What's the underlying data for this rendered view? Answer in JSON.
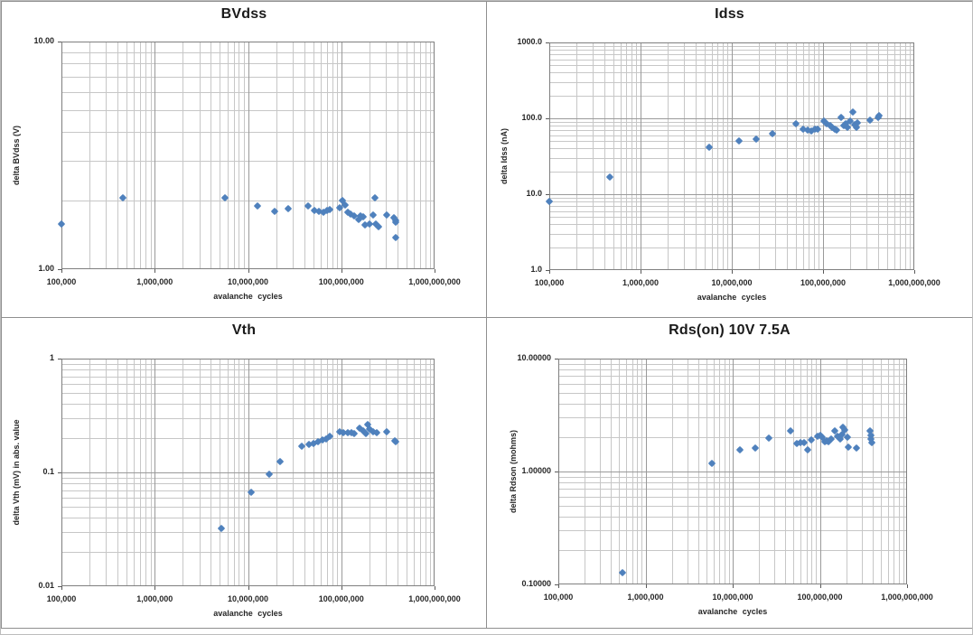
{
  "page": {
    "background": "#ffffff",
    "marker_color": "#4f81bd",
    "gridline_minor_color": "#c7c7c7",
    "gridline_major_color": "#9a9a9a",
    "axis_color": "#595959"
  },
  "chart_data": [
    {
      "id": "bvdss",
      "type": "scatter",
      "title": "BVdss",
      "xlabel": "avalanche cycles",
      "ylabel": "delta BVdss (V)",
      "xscale": "log",
      "yscale": "log",
      "xlim": [
        100000,
        1000000000
      ],
      "ylim": [
        1,
        10
      ],
      "x_tick_labels": [
        "100,000",
        "1,000,000",
        "10,000,000",
        "100,000,000",
        "1,000,000,000"
      ],
      "y_tick_values": [
        10,
        1
      ],
      "y_tick_labels": [
        "10.00",
        "1.00"
      ],
      "grid": true,
      "legend": null,
      "points": [
        [
          100000,
          1.58
        ],
        [
          460000,
          2.05
        ],
        [
          5600000,
          2.05
        ],
        [
          12500000,
          1.9
        ],
        [
          19500000,
          1.8
        ],
        [
          27000000,
          1.85
        ],
        [
          44000000,
          1.9
        ],
        [
          51000000,
          1.81
        ],
        [
          57000000,
          1.8
        ],
        [
          64000000,
          1.78
        ],
        [
          70000000,
          1.81
        ],
        [
          76000000,
          1.83
        ],
        [
          97000000,
          1.86
        ],
        [
          102000000,
          2.0
        ],
        [
          109000000,
          1.91
        ],
        [
          117000000,
          1.78
        ],
        [
          127000000,
          1.75
        ],
        [
          136000000,
          1.71
        ],
        [
          152000000,
          1.65
        ],
        [
          162000000,
          1.71
        ],
        [
          170000000,
          1.7
        ],
        [
          181000000,
          1.56
        ],
        [
          203000000,
          1.58
        ],
        [
          220000000,
          1.73
        ],
        [
          230000000,
          2.06
        ],
        [
          234000000,
          1.58
        ],
        [
          250000000,
          1.53
        ],
        [
          310000000,
          1.73
        ],
        [
          370000000,
          1.68
        ],
        [
          380000000,
          1.64
        ],
        [
          385000000,
          1.61
        ],
        [
          385000000,
          1.38
        ]
      ]
    },
    {
      "id": "idss",
      "type": "scatter",
      "title": "Idss",
      "xlabel": "avalanche cycles",
      "ylabel": "delta Idss (nA)",
      "xscale": "log",
      "yscale": "log",
      "xlim": [
        100000,
        1000000000
      ],
      "ylim": [
        1,
        1000
      ],
      "x_tick_labels": [
        "100,000",
        "1,000,000",
        "10,000,000",
        "100,000,000",
        "1,000,000,000"
      ],
      "y_tick_values": [
        1000,
        100,
        10,
        1
      ],
      "y_tick_labels": [
        "1000.0",
        "100.0",
        "10.0",
        "1.0"
      ],
      "grid": true,
      "legend": null,
      "points": [
        [
          100000,
          8
        ],
        [
          460000,
          17
        ],
        [
          5600000,
          42
        ],
        [
          12000000,
          50
        ],
        [
          18500000,
          53
        ],
        [
          28000000,
          63
        ],
        [
          50000000,
          86
        ],
        [
          60000000,
          72
        ],
        [
          68000000,
          70
        ],
        [
          75000000,
          68
        ],
        [
          82000000,
          72
        ],
        [
          88000000,
          71
        ],
        [
          102000000,
          93
        ],
        [
          110000000,
          86
        ],
        [
          120000000,
          80
        ],
        [
          127000000,
          75
        ],
        [
          135000000,
          72
        ],
        [
          140000000,
          70
        ],
        [
          157000000,
          104
        ],
        [
          168000000,
          80
        ],
        [
          176000000,
          86
        ],
        [
          184000000,
          75
        ],
        [
          200000000,
          92
        ],
        [
          210000000,
          122
        ],
        [
          220000000,
          83
        ],
        [
          230000000,
          75
        ],
        [
          240000000,
          88
        ],
        [
          330000000,
          94
        ],
        [
          400000000,
          103
        ],
        [
          410000000,
          108
        ]
      ]
    },
    {
      "id": "vth",
      "type": "scatter",
      "title": "Vth",
      "xlabel": "avalanche cycles",
      "ylabel": "delta Vth (mV) in abs. value",
      "xscale": "log",
      "yscale": "log",
      "xlim": [
        100000,
        1000000000
      ],
      "ylim": [
        0.01,
        1
      ],
      "x_tick_labels": [
        "100,000",
        "1,000,000",
        "10,000,000",
        "100,000,000",
        "1,000,000,000"
      ],
      "y_tick_values": [
        1,
        0.1,
        0.01
      ],
      "y_tick_labels": [
        "1",
        "0.1",
        "0.01"
      ],
      "grid": true,
      "legend": null,
      "points": [
        [
          5200000,
          0.032
        ],
        [
          10700000,
          0.067
        ],
        [
          16800000,
          0.097
        ],
        [
          22000000,
          0.125
        ],
        [
          37500000,
          0.17
        ],
        [
          45000000,
          0.176
        ],
        [
          50000000,
          0.179
        ],
        [
          56000000,
          0.186
        ],
        [
          63000000,
          0.193
        ],
        [
          69000000,
          0.197
        ],
        [
          75000000,
          0.208
        ],
        [
          96000000,
          0.228
        ],
        [
          104000000,
          0.224
        ],
        [
          117000000,
          0.224
        ],
        [
          128000000,
          0.224
        ],
        [
          136000000,
          0.22
        ],
        [
          157000000,
          0.245
        ],
        [
          170000000,
          0.232
        ],
        [
          182000000,
          0.22
        ],
        [
          190000000,
          0.264
        ],
        [
          199000000,
          0.241
        ],
        [
          220000000,
          0.228
        ],
        [
          240000000,
          0.224
        ],
        [
          307000000,
          0.228
        ],
        [
          376000000,
          0.19
        ],
        [
          380000000,
          0.186
        ]
      ]
    },
    {
      "id": "rdson",
      "type": "scatter",
      "title": "Rds(on) 10V 7.5A",
      "xlabel": "avalanche cycles",
      "ylabel": "delta Rdson (mohms)",
      "xscale": "log",
      "yscale": "log",
      "xlim": [
        100000,
        1000000000
      ],
      "ylim": [
        0.1,
        10
      ],
      "x_tick_labels": [
        "100,000",
        "1,000,000",
        "10,000,000",
        "100,000,000",
        "1,000,000,000"
      ],
      "y_tick_values": [
        10,
        1,
        0.1
      ],
      "y_tick_labels": [
        "10.00000",
        "1.00000",
        "0.10000"
      ],
      "grid": true,
      "legend": null,
      "points": [
        [
          540000,
          0.127
        ],
        [
          5800000,
          1.18
        ],
        [
          12000000,
          1.55
        ],
        [
          18000000,
          1.61
        ],
        [
          26000000,
          1.96
        ],
        [
          46000000,
          2.3
        ],
        [
          55000000,
          1.76
        ],
        [
          60000000,
          1.8
        ],
        [
          66000000,
          1.8
        ],
        [
          73000000,
          1.57
        ],
        [
          80000000,
          1.9
        ],
        [
          95000000,
          2.05
        ],
        [
          102000000,
          2.08
        ],
        [
          107000000,
          2.0
        ],
        [
          115000000,
          1.83
        ],
        [
          120000000,
          1.86
        ],
        [
          126000000,
          1.83
        ],
        [
          135000000,
          1.95
        ],
        [
          147000000,
          2.28
        ],
        [
          161000000,
          2.05
        ],
        [
          170000000,
          1.95
        ],
        [
          178000000,
          2.12
        ],
        [
          185000000,
          2.48
        ],
        [
          195000000,
          2.32
        ],
        [
          205000000,
          2.0
        ],
        [
          210000000,
          1.64
        ],
        [
          260000000,
          1.62
        ],
        [
          380000000,
          2.28
        ],
        [
          385000000,
          2.1
        ],
        [
          385000000,
          1.95
        ],
        [
          390000000,
          1.8
        ]
      ]
    }
  ]
}
